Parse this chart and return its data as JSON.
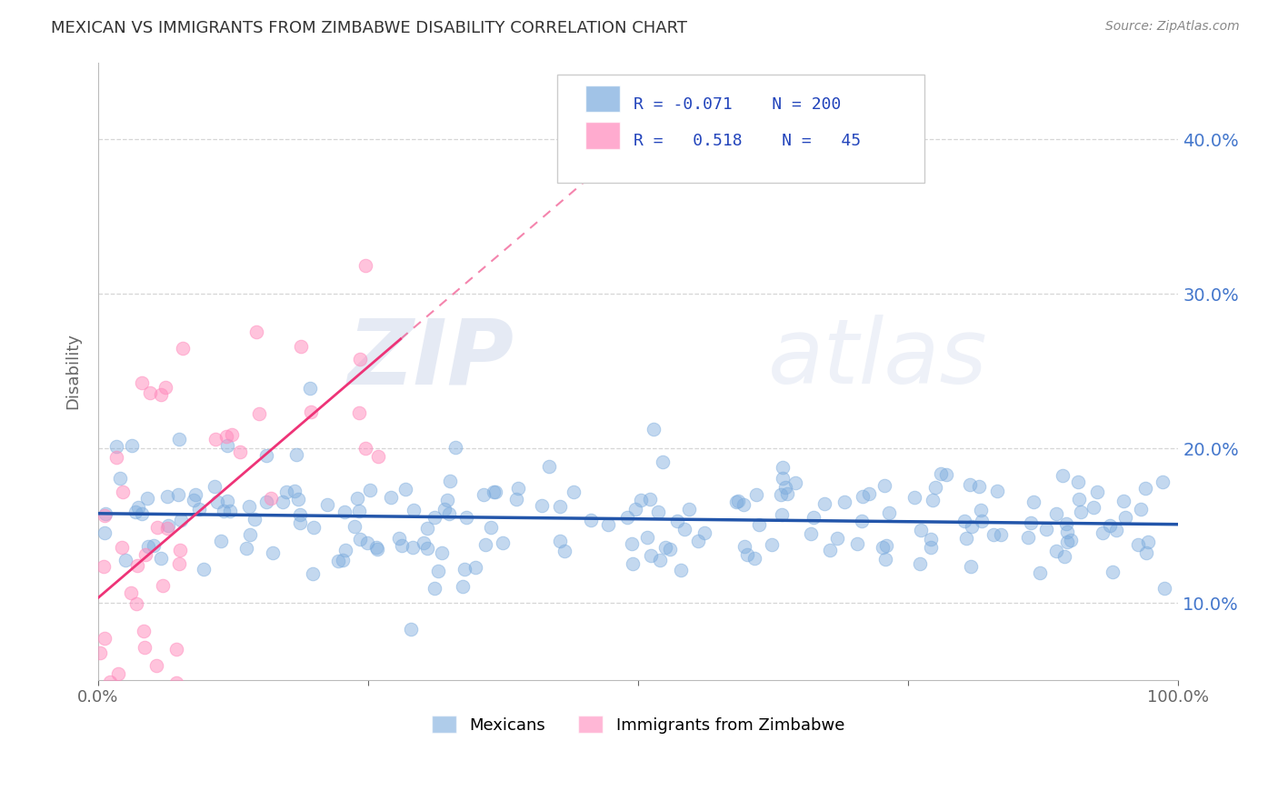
{
  "title": "MEXICAN VS IMMIGRANTS FROM ZIMBABWE DISABILITY CORRELATION CHART",
  "source_text": "Source: ZipAtlas.com",
  "watermark_zip": "ZIP",
  "watermark_atlas": "atlas",
  "ylabel": "Disability",
  "xlabel": "",
  "xlim": [
    0,
    1
  ],
  "ylim": [
    0.05,
    0.45
  ],
  "yticks": [
    0.1,
    0.2,
    0.3,
    0.4
  ],
  "ytick_labels": [
    "10.0%",
    "20.0%",
    "30.0%",
    "40.0%"
  ],
  "xticks": [
    0.0,
    0.25,
    0.5,
    0.75,
    1.0
  ],
  "xtick_labels": [
    "0.0%",
    "",
    "",
    "",
    "100.0%"
  ],
  "grid_color": "#cccccc",
  "blue_color": "#7aaadd",
  "pink_color": "#ff88bb",
  "blue_line_color": "#2255aa",
  "pink_line_color": "#ee3377",
  "legend_R_blue": "-0.071",
  "legend_N_blue": "200",
  "legend_R_pink": "0.518",
  "legend_N_pink": "45",
  "mexicans_label": "Mexicans",
  "zimbabwe_label": "Immigrants from Zimbabwe",
  "blue_R": -0.071,
  "blue_N": 200,
  "pink_R": 0.518,
  "pink_N": 45,
  "seed_blue": 42,
  "seed_pink": 7,
  "background_color": "#ffffff",
  "title_color": "#333333",
  "title_fontsize": 13,
  "axis_color": "#666666",
  "tick_color": "#4477cc"
}
